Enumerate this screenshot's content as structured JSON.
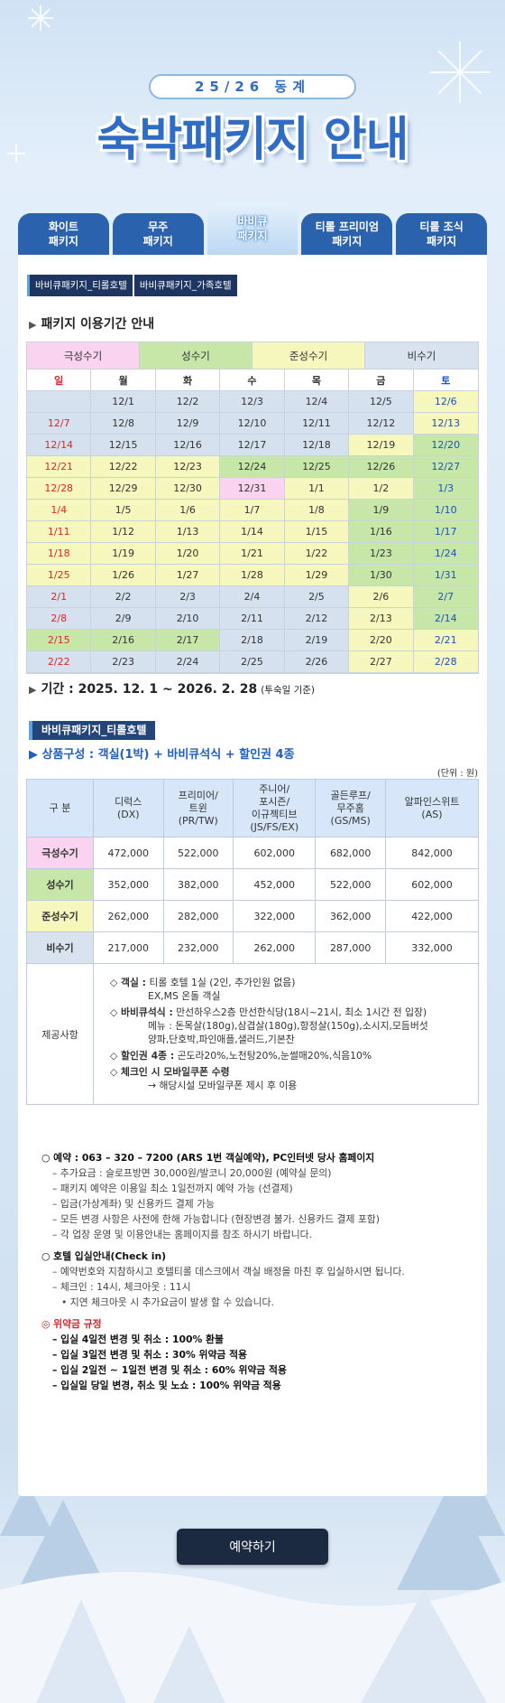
{
  "header": {
    "season": "25/26 동계",
    "title": "숙박패키지 안내"
  },
  "tabs": [
    {
      "lines": [
        "화이트",
        "패키지"
      ]
    },
    {
      "lines": [
        "무주",
        "패키지"
      ]
    },
    {
      "lines": [
        "바비큐",
        "패키지"
      ],
      "active": true
    },
    {
      "lines": [
        "티롤 프리미엄",
        "패키지"
      ]
    },
    {
      "lines": [
        "티롤 조식",
        "패키지"
      ]
    }
  ],
  "subtabs": [
    "바비큐패키지_티롤호텔",
    "바비큐패키지_가족호텔"
  ],
  "period_heading": "패키지 이용기간 안내",
  "calendar": {
    "seasons": [
      {
        "name": "극성수기",
        "color": "#f9d3ef"
      },
      {
        "name": "성수기",
        "color": "#c6e7a8"
      },
      {
        "name": "준성수기",
        "color": "#f5f7bd"
      },
      {
        "name": "비수기",
        "color": "#d8e3ef"
      }
    ],
    "weekdays": [
      "일",
      "월",
      "화",
      "수",
      "목",
      "금",
      "토"
    ],
    "rows": [
      {
        "dates": [
          null,
          "12/1",
          "12/2",
          "12/3",
          "12/4",
          "12/5",
          "12/6"
        ],
        "colors": [
          "#d5e1ee",
          "#d5e1ee",
          "#d5e1ee",
          "#d5e1ee",
          "#d5e1ee",
          "#d5e1ee",
          "#f5f7bd"
        ]
      },
      {
        "dates": [
          "12/7",
          "12/8",
          "12/9",
          "12/10",
          "12/11",
          "12/12",
          "12/13"
        ],
        "colors": [
          "#d5e1ee",
          "#d5e1ee",
          "#d5e1ee",
          "#d5e1ee",
          "#d5e1ee",
          "#d5e1ee",
          "#f5f7bd"
        ]
      },
      {
        "dates": [
          "12/14",
          "12/15",
          "12/16",
          "12/17",
          "12/18",
          "12/19",
          "12/20"
        ],
        "colors": [
          "#d5e1ee",
          "#d5e1ee",
          "#d5e1ee",
          "#d5e1ee",
          "#d5e1ee",
          "#f5f7bd",
          "#c6e7a8"
        ]
      },
      {
        "dates": [
          "12/21",
          "12/22",
          "12/23",
          "12/24",
          "12/25",
          "12/26",
          "12/27"
        ],
        "colors": [
          "#f5f7bd",
          "#f5f7bd",
          "#f5f7bd",
          "#c6e7a8",
          "#c6e7a8",
          "#c6e7a8",
          "#c6e7a8"
        ]
      },
      {
        "dates": [
          "12/28",
          "12/29",
          "12/30",
          "12/31",
          "1/1",
          "1/2",
          "1/3"
        ],
        "colors": [
          "#f5f7bd",
          "#f5f7bd",
          "#f5f7bd",
          "#f9d3ef",
          "#f5f7bd",
          "#f5f7bd",
          "#c6e7a8"
        ]
      },
      {
        "dates": [
          "1/4",
          "1/5",
          "1/6",
          "1/7",
          "1/8",
          "1/9",
          "1/10"
        ],
        "colors": [
          "#f5f7bd",
          "#f5f7bd",
          "#f5f7bd",
          "#f5f7bd",
          "#f5f7bd",
          "#c6e7a8",
          "#c6e7a8"
        ]
      },
      {
        "dates": [
          "1/11",
          "1/12",
          "1/13",
          "1/14",
          "1/15",
          "1/16",
          "1/17"
        ],
        "colors": [
          "#f5f7bd",
          "#f5f7bd",
          "#f5f7bd",
          "#f5f7bd",
          "#f5f7bd",
          "#c6e7a8",
          "#c6e7a8"
        ]
      },
      {
        "dates": [
          "1/18",
          "1/19",
          "1/20",
          "1/21",
          "1/22",
          "1/23",
          "1/24"
        ],
        "colors": [
          "#f5f7bd",
          "#f5f7bd",
          "#f5f7bd",
          "#f5f7bd",
          "#f5f7bd",
          "#c6e7a8",
          "#c6e7a8"
        ]
      },
      {
        "dates": [
          "1/25",
          "1/26",
          "1/27",
          "1/28",
          "1/29",
          "1/30",
          "1/31"
        ],
        "colors": [
          "#f5f7bd",
          "#f5f7bd",
          "#f5f7bd",
          "#f5f7bd",
          "#f5f7bd",
          "#c6e7a8",
          "#c6e7a8"
        ]
      },
      {
        "dates": [
          "2/1",
          "2/2",
          "2/3",
          "2/4",
          "2/5",
          "2/6",
          "2/7"
        ],
        "colors": [
          "#d5e1ee",
          "#d5e1ee",
          "#d5e1ee",
          "#d5e1ee",
          "#d5e1ee",
          "#f5f7bd",
          "#c6e7a8"
        ]
      },
      {
        "dates": [
          "2/8",
          "2/9",
          "2/10",
          "2/11",
          "2/12",
          "2/13",
          "2/14"
        ],
        "colors": [
          "#d5e1ee",
          "#d5e1ee",
          "#d5e1ee",
          "#d5e1ee",
          "#d5e1ee",
          "#f5f7bd",
          "#c6e7a8"
        ]
      },
      {
        "dates": [
          "2/15",
          "2/16",
          "2/17",
          "2/18",
          "2/19",
          "2/20",
          "2/21"
        ],
        "colors": [
          "#c6e7a8",
          "#c6e7a8",
          "#c6e7a8",
          "#d5e1ee",
          "#d5e1ee",
          "#f5f7bd",
          "#f5f7bd"
        ]
      },
      {
        "dates": [
          "2/22",
          "2/23",
          "2/24",
          "2/25",
          "2/26",
          "2/27",
          "2/28"
        ],
        "colors": [
          "#d5e1ee",
          "#d5e1ee",
          "#d5e1ee",
          "#d5e1ee",
          "#d5e1ee",
          "#f5f7bd",
          "#f5f7bd"
        ]
      }
    ]
  },
  "period": {
    "text": "기간 : 2025. 12. 1 ~ 2026. 2. 28",
    "note": "(투숙일 기준)"
  },
  "package": {
    "name": "바비큐패키지_티롤호텔",
    "composition": "상품구성 : 객실(1박) + 바비큐석식 + 할인권 4종",
    "unit": "(단위 : 원)",
    "table": {
      "header": [
        [
          "구 분"
        ],
        [
          "디럭스",
          "(DX)"
        ],
        [
          "프리미어/",
          "트윈",
          "(PR/TW)"
        ],
        [
          "주니어/",
          "포시즌/",
          "이규젝티브",
          "(JS/FS/EX)"
        ],
        [
          "골든루프/",
          "무주홈",
          "(GS/MS)"
        ],
        [
          "알파인스위트",
          "(AS)"
        ]
      ],
      "rows": [
        {
          "label": "극성수기",
          "prices": [
            "472,000",
            "522,000",
            "602,000",
            "682,000",
            "842,000"
          ]
        },
        {
          "label": "성수기",
          "prices": [
            "352,000",
            "382,000",
            "452,000",
            "522,000",
            "602,000"
          ]
        },
        {
          "label": "준성수기",
          "prices": [
            "262,000",
            "282,000",
            "322,000",
            "362,000",
            "422,000"
          ]
        },
        {
          "label": "비수기",
          "prices": [
            "217,000",
            "232,000",
            "262,000",
            "287,000",
            "332,000"
          ]
        }
      ],
      "provisions": {
        "label": "제공사항",
        "items": [
          {
            "label": "◇ 객실 :",
            "text": "티롤 호텔 1실 (2인, 추가인원 없음)",
            "more": [
              "EX,MS 온돌 객실"
            ]
          },
          {
            "label": "◇ 바비큐석식 :",
            "text": "만선하우스2층 만선한식당(18시~21시, 최소 1시간 전 입장)",
            "more": [
              "메뉴 : 돈목살(180g),삼겹살(180g),항정살(150g),소시지,모듬버섯",
              "양파,단호박,파인애플,샐러드,기본찬"
            ]
          },
          {
            "label": "◇ 할인권 4종 :",
            "text": "곤도라20%,노천탕20%,눈썰매20%,식음10%",
            "more": []
          },
          {
            "label": "◇ 체크인 시 모바일쿠폰 수령",
            "text": null,
            "more": [
              "→ 해당시설 모바일쿠폰 제시 후 이용"
            ]
          }
        ]
      }
    }
  },
  "notes": [
    {
      "head": "○ 예약 : 063 – 320 – 7200 (ARS 1번 객실예약), PC인터넷 당사 홈페이지",
      "items": [
        "– 추가요금 : 슬로프방면 30,000원/발코니 20,000원 (예약실 문의)",
        "– 패키지 예약은 이용일 최소 1일전까지 예약 가능 (선결제)",
        "– 입금(가상계좌) 및 신용카드 결제 가능",
        "– 모든 변경 사항은 사전에 한해 가능합니다 (현장변경 불가. 신용카드 결제 포함)",
        "– 각 업장 운영 및 이용안내는 홈페이지를 참조 하시기 바랍니다."
      ]
    },
    {
      "head": "○ 호텔 입실안내(Check in)",
      "items": [
        "– 예약번호와 지참하시고 호텔티롤 데스크에서 객실 배정을 마친 후 입실하시면 됩니다.",
        "– 체크인 : 14시, 체크아웃 : 11시",
        "• 지연 체크아웃 시 추가요금이 발생 할 수  있습니다."
      ]
    },
    {
      "head": "◎ 위약금 규정",
      "items": [
        "– 입실 4일전 변경 및 취소 : 100% 환불",
        "– 입실 3일전 변경 및 취소 : 30% 위약금 적용",
        "– 입실 2일전 ~ 1일전 변경 및 취소 : 60% 위약금 적용",
        "– 입실일 당일 변경, 취소 및 노쇼 : 100% 위약금 적용"
      ],
      "warning": true
    }
  ],
  "button": "예약하기"
}
